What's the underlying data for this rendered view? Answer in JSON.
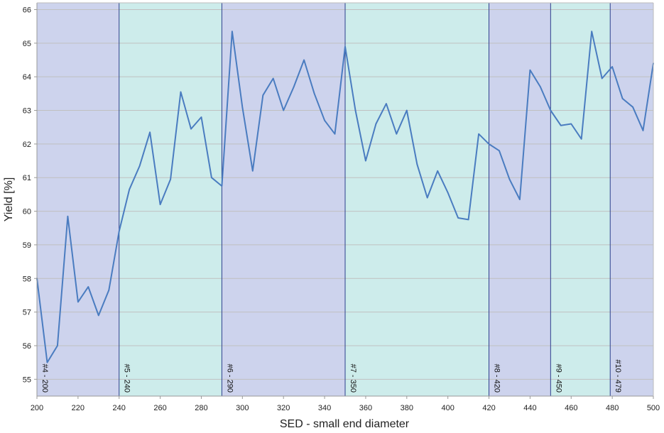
{
  "chart_data": {
    "type": "line",
    "title": "",
    "xlabel": "SED - small end diameter",
    "ylabel": "Yield [%]",
    "xlim": [
      200,
      500
    ],
    "ylim": [
      54.5,
      66.2
    ],
    "xticks": [
      200,
      220,
      240,
      260,
      280,
      300,
      320,
      340,
      360,
      380,
      400,
      420,
      440,
      460,
      480,
      500
    ],
    "yticks": [
      55,
      56,
      57,
      58,
      59,
      60,
      61,
      62,
      63,
      64,
      65,
      66
    ],
    "grid": true,
    "colors": {
      "line": "#4a7cc0",
      "band_blue": "#cdd3ed",
      "band_green": "#cdeceb",
      "divider": "#2c3f8c",
      "gridline": "#c0c0c0"
    },
    "bands": [
      {
        "label": "#4 - 200",
        "start": 200,
        "end": 240,
        "color": "blue"
      },
      {
        "label": "#5 - 240",
        "start": 240,
        "end": 290,
        "color": "green"
      },
      {
        "label": "#6 - 290",
        "start": 290,
        "end": 350,
        "color": "blue"
      },
      {
        "label": "#7 - 350",
        "start": 350,
        "end": 420,
        "color": "green"
      },
      {
        "label": "#8 - 420",
        "start": 420,
        "end": 450,
        "color": "blue"
      },
      {
        "label": "#9 - 450",
        "start": 450,
        "end": 479,
        "color": "green"
      },
      {
        "label": "#10 - 479",
        "start": 479,
        "end": 500,
        "color": "blue"
      }
    ],
    "series": [
      {
        "x": [
          200,
          205,
          210,
          215,
          220,
          225,
          230,
          235,
          240,
          245,
          250,
          255,
          260,
          265,
          270,
          275,
          280,
          285,
          290,
          295,
          300,
          305,
          310,
          315,
          320,
          325,
          330,
          335,
          340,
          345,
          350,
          355,
          360,
          365,
          370,
          375,
          380,
          385,
          390,
          395,
          400,
          405,
          410,
          415,
          420,
          425,
          430,
          435,
          440,
          445,
          450,
          455,
          460,
          465,
          470,
          475,
          480,
          485,
          490,
          495,
          500
        ],
        "values": [
          58.0,
          55.5,
          56.0,
          59.85,
          57.3,
          57.75,
          56.9,
          57.65,
          59.4,
          60.65,
          61.35,
          62.35,
          60.2,
          60.95,
          63.55,
          62.45,
          62.8,
          61.0,
          60.75,
          65.35,
          63.1,
          61.2,
          63.45,
          63.95,
          63.0,
          63.7,
          64.5,
          63.5,
          62.7,
          62.3,
          64.9,
          63.0,
          61.5,
          62.6,
          63.2,
          62.3,
          63.0,
          61.4,
          60.4,
          61.2,
          60.55,
          59.8,
          59.75,
          62.3,
          62.0,
          61.8,
          60.95,
          60.35,
          64.2,
          63.7,
          63.0,
          62.55,
          62.6,
          62.15,
          65.35,
          63.95,
          64.3,
          63.35,
          63.1,
          62.4,
          64.4
        ]
      }
    ]
  }
}
